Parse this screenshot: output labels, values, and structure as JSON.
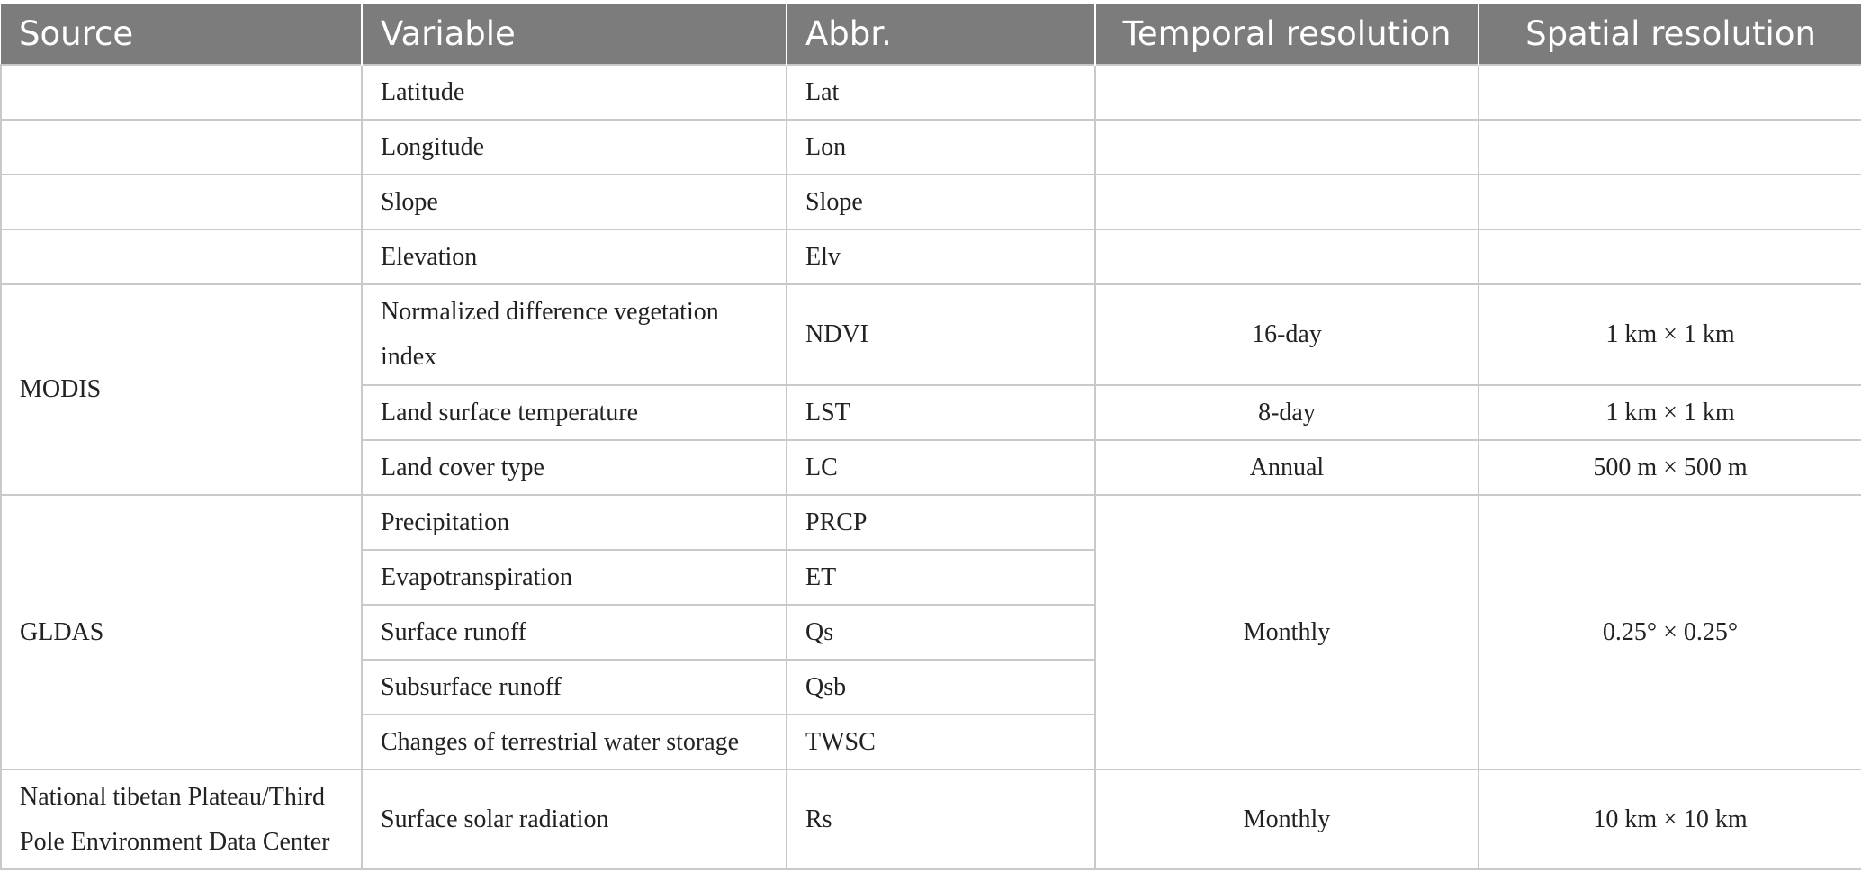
{
  "table": {
    "headers": [
      "Source",
      "Variable",
      "Abbr.",
      "Temporal resolution",
      "Spatial resolution"
    ],
    "rows": [
      {
        "source": "",
        "variable": "Latitude",
        "abbr": "Lat",
        "temporal": "",
        "spatial": ""
      },
      {
        "source": "",
        "variable": "Longitude",
        "abbr": "Lon",
        "temporal": "",
        "spatial": ""
      },
      {
        "source": "",
        "variable": "Slope",
        "abbr": "Slope",
        "temporal": "",
        "spatial": ""
      },
      {
        "source": "",
        "variable": "Elevation",
        "abbr": "Elv",
        "temporal": "",
        "spatial": ""
      },
      {
        "source": "MODIS",
        "variable": "Normalized difference vegetation index",
        "abbr": "NDVI",
        "temporal": "16-day",
        "spatial": "1 km × 1 km"
      },
      {
        "source": "",
        "variable": "Land surface temperature",
        "abbr": "LST",
        "temporal": "8-day",
        "spatial": "1 km × 1 km"
      },
      {
        "source": "",
        "variable": "Land cover type",
        "abbr": "LC",
        "temporal": "Annual",
        "spatial": "500 m × 500 m"
      },
      {
        "source": "GLDAS",
        "variable": "Precipitation",
        "abbr": "PRCP",
        "temporal": "Monthly",
        "spatial": "0.25° × 0.25°"
      },
      {
        "source": "",
        "variable": "Evapotranspiration",
        "abbr": "ET",
        "temporal": "",
        "spatial": ""
      },
      {
        "source": "",
        "variable": "Surface runoff",
        "abbr": "Qs",
        "temporal": "",
        "spatial": ""
      },
      {
        "source": "",
        "variable": "Subsurface runoff",
        "abbr": "Qsb",
        "temporal": "",
        "spatial": ""
      },
      {
        "source": "",
        "variable": "Changes of terrestrial water storage",
        "abbr": "TWSC",
        "temporal": "",
        "spatial": ""
      },
      {
        "source": "National tibetan Plateau/Third Pole Environment Data Center",
        "variable": "Surface solar radiation",
        "abbr": "Rs",
        "temporal": "Monthly",
        "spatial": "10 km × 10 km"
      }
    ]
  }
}
